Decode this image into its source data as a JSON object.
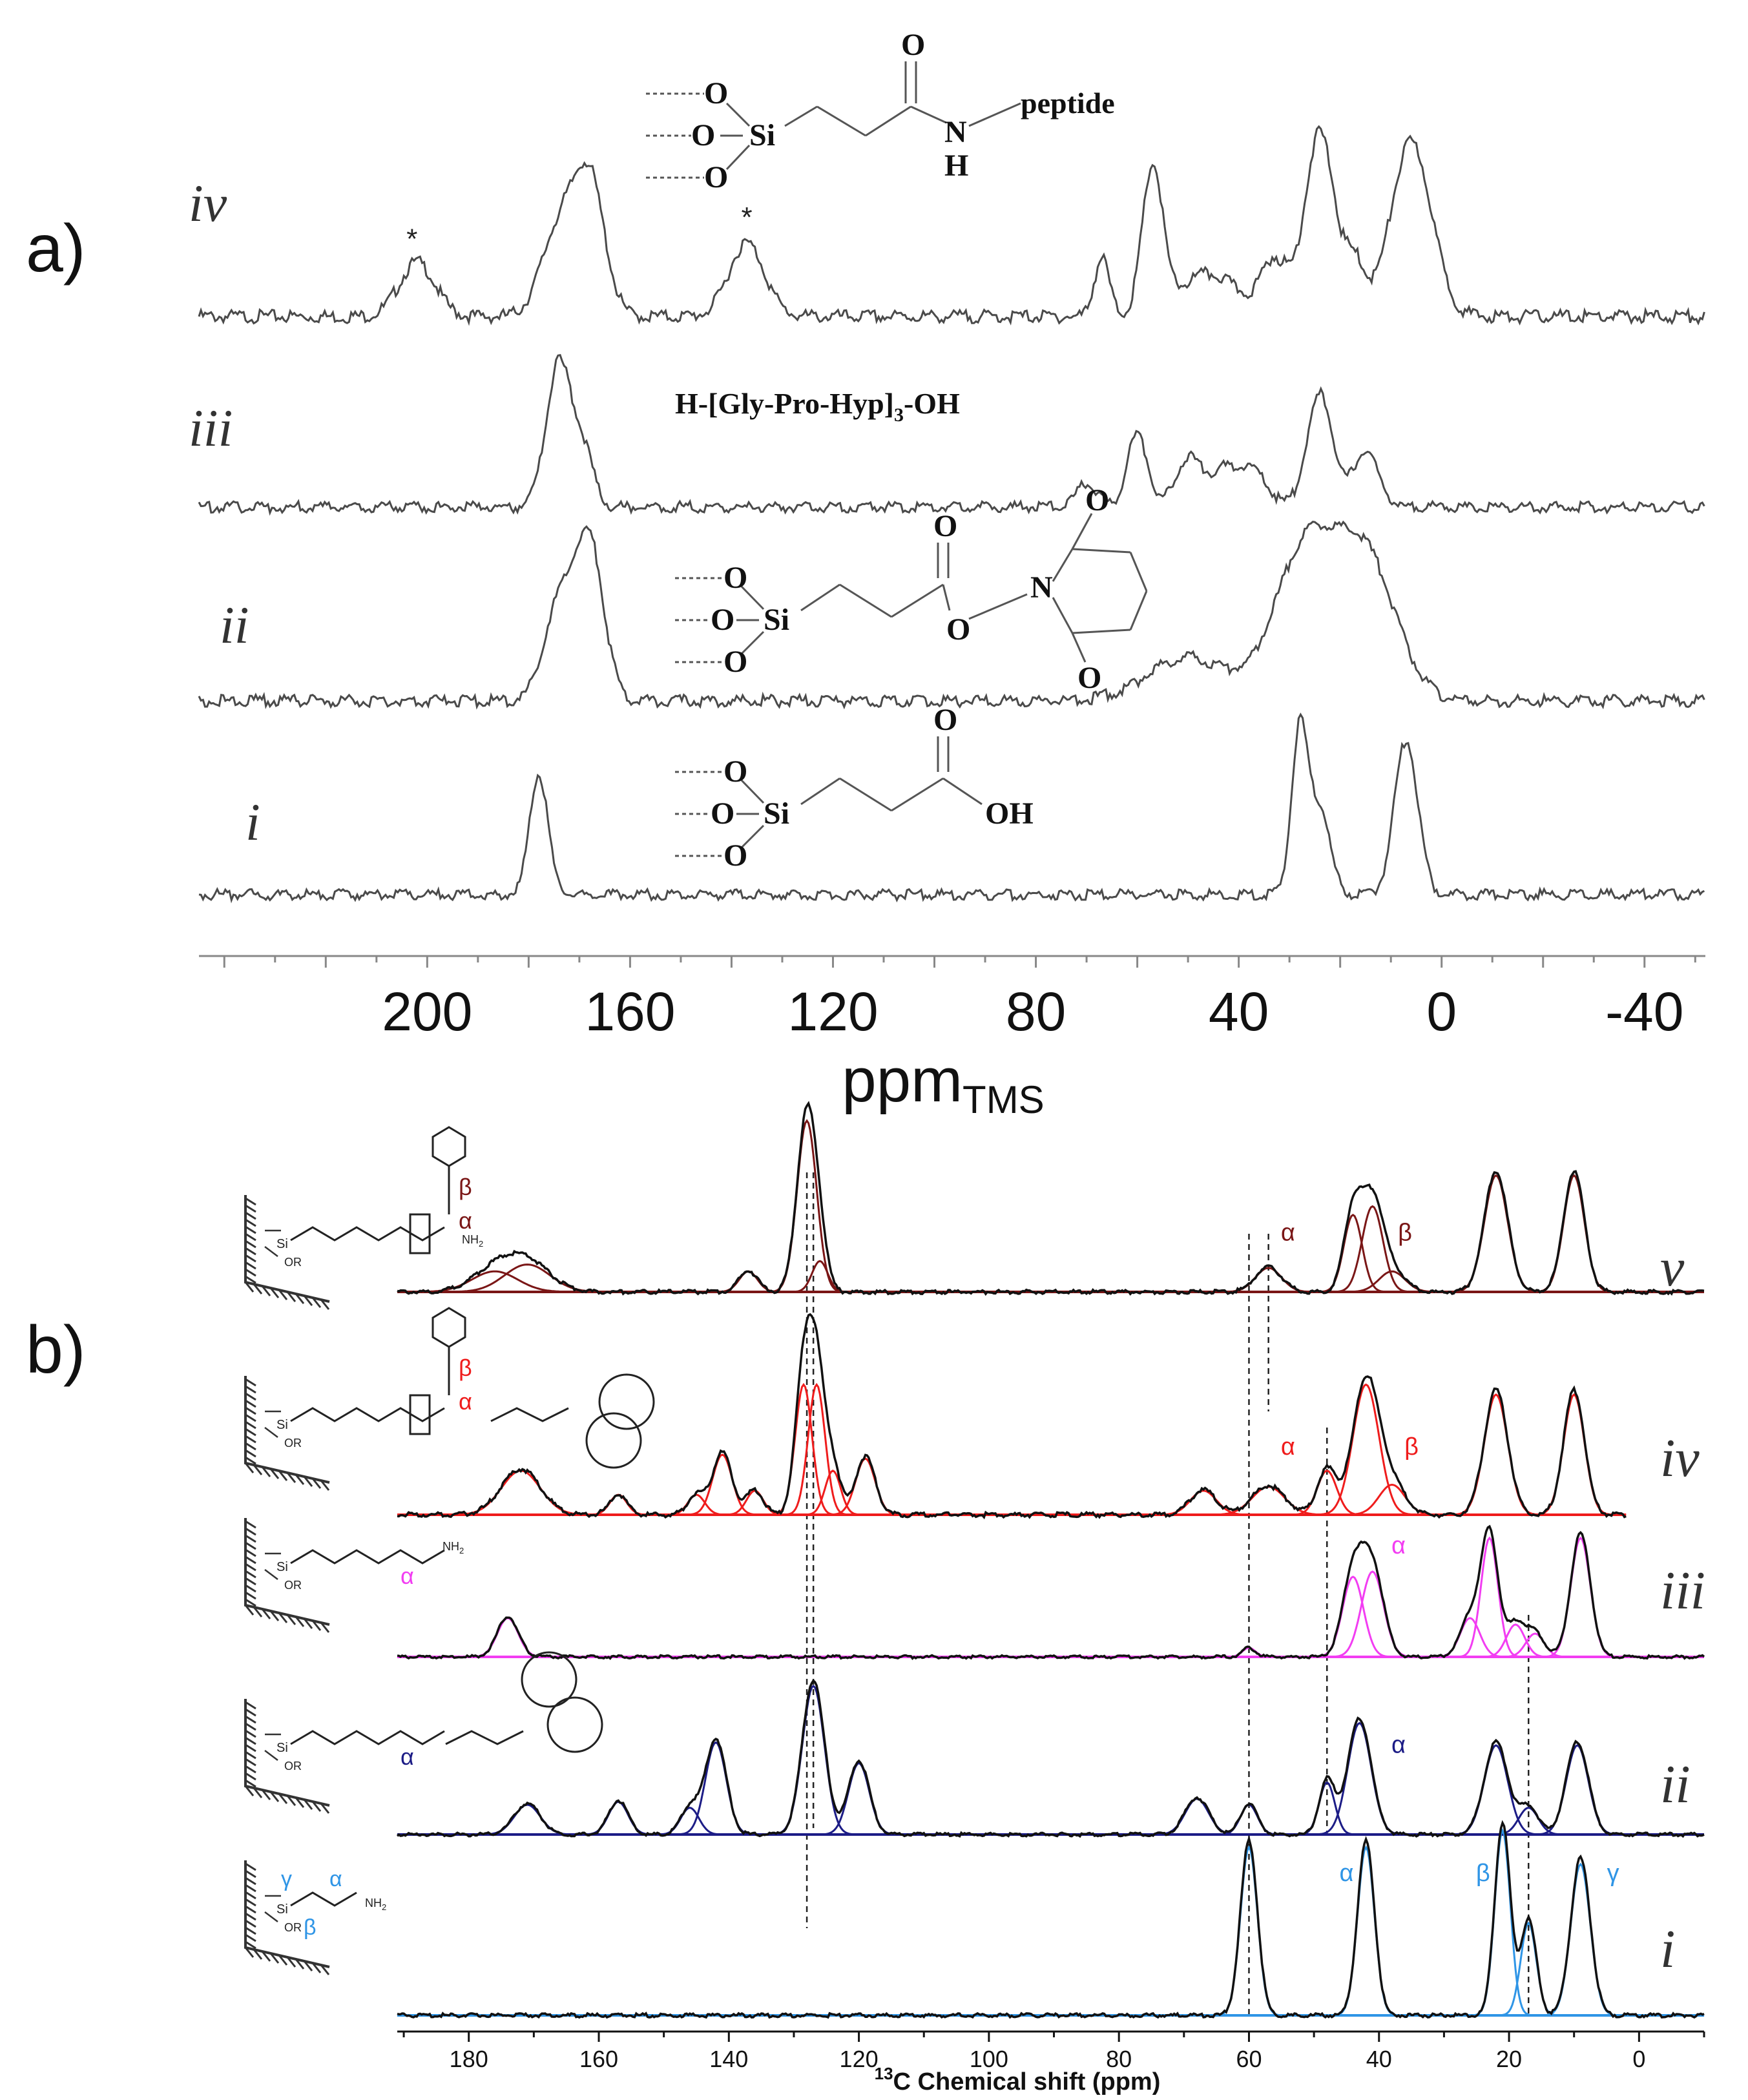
{
  "panel_labels": [
    "a)",
    "b)"
  ],
  "colors": {
    "grey_trace": "#4a4a4a",
    "v_fit": "#7a1616",
    "iv_fit": "#ef1c1c",
    "iii_fit": "#f23df2",
    "ii_fit": "#1c1c86",
    "i_fit": "#2f95e6",
    "experimental": "#111111"
  },
  "chart_data": [
    {
      "type": "line",
      "panel": "a)",
      "title": "",
      "xlabel": "ppm",
      "xlabel_sub": "TMS",
      "xlim": [
        245,
        -52
      ],
      "x_reversed": true,
      "xticks": [
        200,
        160,
        120,
        80,
        40,
        0,
        -40
      ],
      "xtick_labels": [
        "200",
        "160",
        "120",
        "80",
        "40",
        "0",
        "-40"
      ],
      "series": [
        {
          "name": "iv",
          "structure": "peptide",
          "structure_labels": {
            "top_o": "O",
            "si": "Si",
            "o1": "O",
            "o2": "O",
            "o3": "O",
            "n": "N",
            "h": "H",
            "peptide": "peptide"
          },
          "markers": [
            {
              "x": 203,
              "label": "*"
            },
            {
              "x": 137,
              "label": "*"
            }
          ],
          "peaks": [
            {
              "center": 202,
              "height": 0.28,
              "width": 3.5
            },
            {
              "center": 174,
              "height": 0.45,
              "width": 3.5
            },
            {
              "center": 168,
              "height": 0.68,
              "width": 3.0
            },
            {
              "center": 137,
              "height": 0.38,
              "width": 3.5
            },
            {
              "center": 67,
              "height": 0.3,
              "width": 1.5
            },
            {
              "center": 57,
              "height": 0.75,
              "width": 2.0
            },
            {
              "center": 46,
              "height": 0.22,
              "width": 6.0
            },
            {
              "center": 33,
              "height": 0.28,
              "width": 2.5
            },
            {
              "center": 24,
              "height": 0.95,
              "width": 3.0
            },
            {
              "center": 17,
              "height": 0.25,
              "width": 2.0
            },
            {
              "center": 6,
              "height": 0.9,
              "width": 4.0
            }
          ]
        },
        {
          "name": "iii",
          "structure_text": "H-[Gly-Pro-Hyp]",
          "structure_text_sub": "3",
          "structure_text_tail": "-OH",
          "peaks": [
            {
              "center": 174,
              "height": 0.9,
              "width": 2.5
            },
            {
              "center": 169,
              "height": 0.3,
              "width": 2.0
            },
            {
              "center": 70,
              "height": 0.15,
              "width": 2.0
            },
            {
              "center": 60,
              "height": 0.45,
              "width": 2.0
            },
            {
              "center": 50,
              "height": 0.3,
              "width": 2.5
            },
            {
              "center": 43,
              "height": 0.22,
              "width": 3.0
            },
            {
              "center": 37,
              "height": 0.2,
              "width": 3.0
            },
            {
              "center": 24,
              "height": 0.7,
              "width": 2.5
            },
            {
              "center": 15,
              "height": 0.35,
              "width": 2.5
            }
          ]
        },
        {
          "name": "ii",
          "structure": "nhs-ester",
          "structure_labels": {
            "top_o": "O",
            "si": "Si",
            "o1": "O",
            "o2": "O",
            "o3": "O",
            "ester_o": "O",
            "n": "N",
            "ring_o_top": "O",
            "ring_o_bot": "O"
          },
          "peaks": [
            {
              "center": 174,
              "height": 0.55,
              "width": 3.0
            },
            {
              "center": 168,
              "height": 0.9,
              "width": 2.8
            },
            {
              "center": 50,
              "height": 0.25,
              "width": 8.0
            },
            {
              "center": 27,
              "height": 0.85,
              "width": 6.0
            },
            {
              "center": 15,
              "height": 0.8,
              "width": 6.0
            }
          ]
        },
        {
          "name": "i",
          "structure": "acid",
          "structure_labels": {
            "top_o": "O",
            "si": "Si",
            "o1": "O",
            "o2": "O",
            "o3": "O",
            "oh": "OH"
          },
          "peaks": [
            {
              "center": 178,
              "height": 0.78,
              "width": 1.8
            },
            {
              "center": 28,
              "height": 1.05,
              "width": 1.6
            },
            {
              "center": 24,
              "height": 0.55,
              "width": 2.0
            },
            {
              "center": 7,
              "height": 1.0,
              "width": 2.3
            }
          ]
        }
      ]
    },
    {
      "type": "line",
      "panel": "b)",
      "title": "",
      "xlabel": "C Chemical shift (ppm)",
      "xlabel_sup": "13",
      "xlim": [
        191,
        -10
      ],
      "x_reversed": true,
      "xticks": [
        180,
        160,
        140,
        120,
        100,
        80,
        60,
        40,
        20,
        0
      ],
      "xtick_labels": [
        "180",
        "160",
        "140",
        "120",
        "100",
        "80",
        "60",
        "40",
        "20",
        "0"
      ],
      "reference_lines": [
        128,
        127,
        57,
        60,
        48,
        17
      ],
      "series": [
        {
          "name": "v",
          "color_key": "v_fit",
          "labels": [
            {
              "text": "α",
              "x": 54,
              "y": 0.3
            },
            {
              "text": "β",
              "x": 36,
              "y": 0.3
            }
          ],
          "structure_labels": {
            "beta": "β",
            "alpha": "α",
            "nh2": "NH",
            "nh2_sub": "2",
            "or": "OR",
            "si": "Si",
            "n": "N",
            "h": "H"
          },
          "peaks": [
            {
              "center": 176,
              "height": 0.12,
              "width": 3.5
            },
            {
              "center": 171,
              "height": 0.16,
              "width": 3.5
            },
            {
              "center": 137,
              "height": 0.12,
              "width": 1.4
            },
            {
              "center": 128,
              "height": 1.0,
              "width": 1.5
            },
            {
              "center": 126,
              "height": 0.18,
              "width": 1.2
            },
            {
              "center": 57,
              "height": 0.14,
              "width": 2.0
            },
            {
              "center": 44,
              "height": 0.45,
              "width": 1.4
            },
            {
              "center": 41,
              "height": 0.5,
              "width": 1.6
            },
            {
              "center": 38,
              "height": 0.12,
              "width": 2.0
            },
            {
              "center": 22,
              "height": 0.68,
              "width": 1.8
            },
            {
              "center": 10,
              "height": 0.68,
              "width": 1.6
            }
          ]
        },
        {
          "name": "iv",
          "color_key": "iv_fit",
          "labels": [
            {
              "text": "α",
              "x": 54,
              "y": 0.3
            },
            {
              "text": "β",
              "x": 35,
              "y": 0.3
            }
          ],
          "structure_labels": {
            "beta": "β",
            "alpha": "α",
            "or": "OR",
            "si": "Si"
          },
          "peaks": [
            {
              "center": 172,
              "height": 0.22,
              "width": 3.0
            },
            {
              "center": 157,
              "height": 0.1,
              "width": 1.3
            },
            {
              "center": 145,
              "height": 0.1,
              "width": 1.3
            },
            {
              "center": 141,
              "height": 0.3,
              "width": 1.5
            },
            {
              "center": 136,
              "height": 0.12,
              "width": 1.3
            },
            {
              "center": 128.5,
              "height": 0.65,
              "width": 1.3
            },
            {
              "center": 126.5,
              "height": 0.65,
              "width": 1.3
            },
            {
              "center": 124,
              "height": 0.22,
              "width": 1.2
            },
            {
              "center": 119,
              "height": 0.28,
              "width": 1.5
            },
            {
              "center": 67,
              "height": 0.12,
              "width": 2.0
            },
            {
              "center": 57,
              "height": 0.14,
              "width": 2.5
            },
            {
              "center": 48,
              "height": 0.22,
              "width": 1.5
            },
            {
              "center": 42,
              "height": 0.65,
              "width": 2.0
            },
            {
              "center": 38,
              "height": 0.15,
              "width": 2.0
            },
            {
              "center": 22,
              "height": 0.6,
              "width": 1.8
            },
            {
              "center": 10,
              "height": 0.6,
              "width": 1.6
            }
          ]
        },
        {
          "name": "iii",
          "color_key": "iii_fit",
          "labels": [
            {
              "text": "α",
              "x": 37,
              "y": 0.8
            }
          ],
          "structure_labels": {
            "alpha": "α",
            "or": "OR",
            "si": "Si",
            "nh2": "NH",
            "nh2_sub": "2"
          },
          "peaks": [
            {
              "center": 174,
              "height": 0.3,
              "width": 1.6
            },
            {
              "center": 60,
              "height": 0.07,
              "width": 1.0
            },
            {
              "center": 44,
              "height": 0.62,
              "width": 1.6
            },
            {
              "center": 41,
              "height": 0.66,
              "width": 1.7
            },
            {
              "center": 26,
              "height": 0.3,
              "width": 1.5
            },
            {
              "center": 23,
              "height": 0.92,
              "width": 1.3
            },
            {
              "center": 19,
              "height": 0.25,
              "width": 1.4
            },
            {
              "center": 16,
              "height": 0.18,
              "width": 1.4
            },
            {
              "center": 9,
              "height": 0.92,
              "width": 1.5
            }
          ]
        },
        {
          "name": "ii",
          "color_key": "ii_fit",
          "labels": [
            {
              "text": "α",
              "x": 37,
              "y": 0.55
            }
          ],
          "structure_labels": {
            "alpha": "α",
            "or": "OR",
            "si": "Si"
          },
          "peaks": [
            {
              "center": 171,
              "height": 0.2,
              "width": 2.0
            },
            {
              "center": 157,
              "height": 0.22,
              "width": 1.5
            },
            {
              "center": 146,
              "height": 0.18,
              "width": 1.4
            },
            {
              "center": 142,
              "height": 0.62,
              "width": 1.6
            },
            {
              "center": 127,
              "height": 1.0,
              "width": 1.7
            },
            {
              "center": 120,
              "height": 0.48,
              "width": 1.6
            },
            {
              "center": 68,
              "height": 0.24,
              "width": 1.8
            },
            {
              "center": 60,
              "height": 0.2,
              "width": 1.3
            },
            {
              "center": 48,
              "height": 0.35,
              "width": 1.2
            },
            {
              "center": 43,
              "height": 0.75,
              "width": 1.8
            },
            {
              "center": 22,
              "height": 0.6,
              "width": 1.8
            },
            {
              "center": 17,
              "height": 0.18,
              "width": 1.5
            },
            {
              "center": 9.5,
              "height": 0.6,
              "width": 1.7
            }
          ]
        },
        {
          "name": "i",
          "color_key": "i_fit",
          "labels": [
            {
              "text": "α",
              "x": 45,
              "y": 0.8
            },
            {
              "text": "β",
              "x": 24,
              "y": 0.8
            },
            {
              "text": "γ",
              "x": 4,
              "y": 0.8
            }
          ],
          "structure_labels": {
            "gamma": "γ",
            "alpha": "α",
            "beta": "β",
            "or": "OR",
            "si": "Si",
            "nh2": "NH",
            "nh2_sub": "2"
          },
          "peaks": [
            {
              "center": 60,
              "height": 1.0,
              "width": 1.3
            },
            {
              "center": 42,
              "height": 1.0,
              "width": 1.3
            },
            {
              "center": 21,
              "height": 1.1,
              "width": 1.2
            },
            {
              "center": 17,
              "height": 0.55,
              "width": 1.2
            },
            {
              "center": 9,
              "height": 0.9,
              "width": 1.5
            }
          ]
        }
      ]
    }
  ]
}
